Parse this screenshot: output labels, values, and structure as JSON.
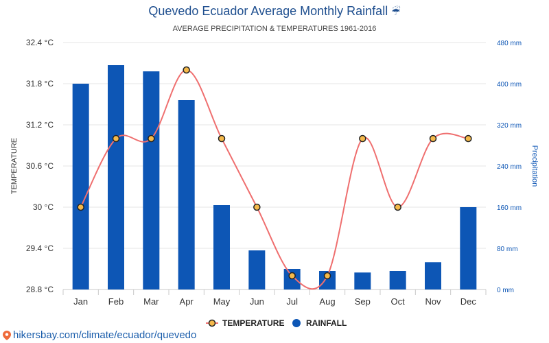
{
  "title": "Quevedo Ecuador Average Monthly Rainfall",
  "title_icon": "umbrella-rain-icon",
  "subtitle": "AVERAGE PRECIPITATION & TEMPERATURES 1961-2016",
  "source_url": "hikersbay.com/climate/ecuador/quevedo",
  "colors": {
    "rainfall": "#0d56b5",
    "temperature_line": "#ef6f6f",
    "temperature_marker": "#f5b94a",
    "title": "#1f4f8f",
    "right_axis": "#0d56b5"
  },
  "chart_data": {
    "type": "bar",
    "categories": [
      "Jan",
      "Feb",
      "Mar",
      "Apr",
      "May",
      "Jun",
      "Jul",
      "Aug",
      "Sep",
      "Oct",
      "Nov",
      "Dec"
    ],
    "series": [
      {
        "name": "TEMPERATURE",
        "type": "line",
        "axis": "left",
        "values": [
          30.0,
          31.0,
          31.0,
          32.0,
          31.0,
          30.0,
          29.0,
          29.0,
          31.0,
          30.0,
          31.0,
          31.0
        ]
      },
      {
        "name": "RAINFALL",
        "type": "bar",
        "axis": "right",
        "values": [
          400,
          436,
          424,
          368,
          164,
          76,
          40,
          36,
          33,
          36,
          53,
          160
        ]
      }
    ],
    "ylabel_left": "TEMPERATURE",
    "ylabel_right": "Precipitation",
    "ylim_left": [
      28.8,
      32.4
    ],
    "yticks_left": [
      "28.8 °C",
      "29.4 °C",
      "30 °C",
      "30.6 °C",
      "31.2 °C",
      "31.8 °C",
      "32.4 °C"
    ],
    "ylim_right": [
      0,
      480
    ],
    "yticks_right": [
      "0 mm",
      "80 mm",
      "160 mm",
      "240 mm",
      "320 mm",
      "400 mm",
      "480 mm"
    ],
    "grid": true,
    "legend_position": "bottom-center",
    "legend": [
      "TEMPERATURE",
      "RAINFALL"
    ]
  }
}
